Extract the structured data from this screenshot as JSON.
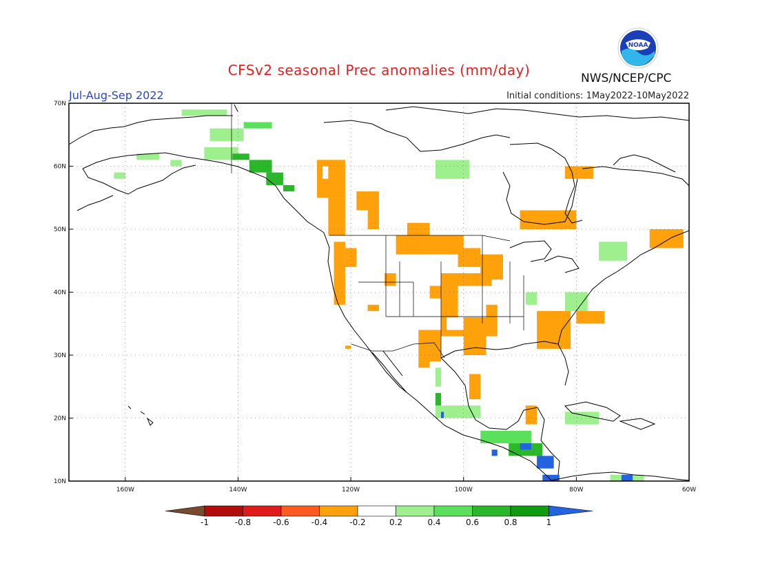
{
  "header": {
    "title": "CFSv2 seasonal Prec anomalies (mm/day)",
    "period": "Jul-Aug-Sep 2022",
    "initial_conditions": "Initial conditions: 1May2022-10May2022",
    "agency": "NWS/NCEP/CPC",
    "logo_text": "NOAA",
    "logo_icon": "noaa-logo-icon"
  },
  "map": {
    "lon_range": [
      -170,
      -60
    ],
    "lat_range": [
      10,
      70
    ],
    "lat_labels": [
      "70N",
      "60N",
      "50N",
      "40N",
      "30N",
      "20N",
      "10N"
    ],
    "lon_labels": [
      "160W",
      "140W",
      "120W",
      "100W",
      "80W",
      "60W"
    ],
    "gridlines": "dotted"
  },
  "colorbar": {
    "labels": [
      "-1",
      "-0.8",
      "-0.6",
      "-0.4",
      "-0.2",
      "0.2",
      "0.4",
      "0.6",
      "0.8",
      "1"
    ],
    "colors": [
      "#7a4a30",
      "#b40b0b",
      "#e01a1a",
      "#ff5a1f",
      "#ffa10a",
      "#ffffff",
      "#9ef08e",
      "#5ae05a",
      "#2ab82a",
      "#109c10",
      "#2463e0"
    ]
  }
}
